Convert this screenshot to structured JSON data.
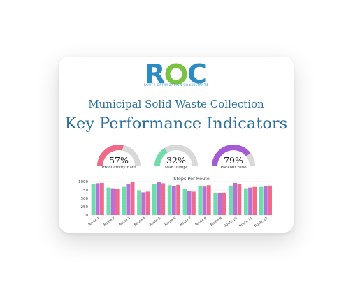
{
  "brand": {
    "logo_letters": [
      "R",
      "O",
      "C"
    ],
    "tagline": "ROUTE OPTIMIZATION CONSULTANTS",
    "colors": {
      "r": "#2b8cc4",
      "o": "#7cc242",
      "c": "#2b8cc4"
    }
  },
  "subtitle": "Municipal Solid Waste Collection",
  "title": "Key Performance Indicators",
  "gauges": [
    {
      "value_text": "57%",
      "label": "Productivity Rate",
      "fraction": 0.57,
      "color": "#ef6a86"
    },
    {
      "value_text": "32%",
      "label": "Max Dumps",
      "fraction": 0.32,
      "color": "#6fdcab"
    },
    {
      "value_text": "79%",
      "label": "Packout ratio",
      "fraction": 0.79,
      "color": "#a45bd3"
    }
  ],
  "gauge_track_color": "#d9d9d9",
  "chart_data": {
    "type": "bar",
    "title": "Stops Per Route",
    "ylim": [
      0,
      1000
    ],
    "yticks": [
      "0",
      "250",
      "500",
      "750",
      "1000"
    ],
    "ytick_values": [
      0,
      250,
      500,
      750,
      1000
    ],
    "grid": true,
    "categories": [
      "Route 1",
      "Route 2",
      "Route 3",
      "Route 4",
      "Route 5",
      "Route 6",
      "Route 7",
      "Route 8",
      "Route 9",
      "Route 10",
      "Route 11",
      "Route 12"
    ],
    "series": [
      {
        "color": "#6fdcab",
        "values": [
          920,
          820,
          840,
          740,
          930,
          890,
          780,
          880,
          650,
          880,
          800,
          840
        ]
      },
      {
        "color": "#b670d6",
        "values": [
          950,
          800,
          920,
          680,
          980,
          870,
          720,
          850,
          660,
          960,
          820,
          860
        ]
      },
      {
        "color": "#ee6a8e",
        "values": [
          960,
          780,
          990,
          700,
          950,
          900,
          700,
          890,
          670,
          920,
          840,
          880
        ]
      }
    ]
  }
}
